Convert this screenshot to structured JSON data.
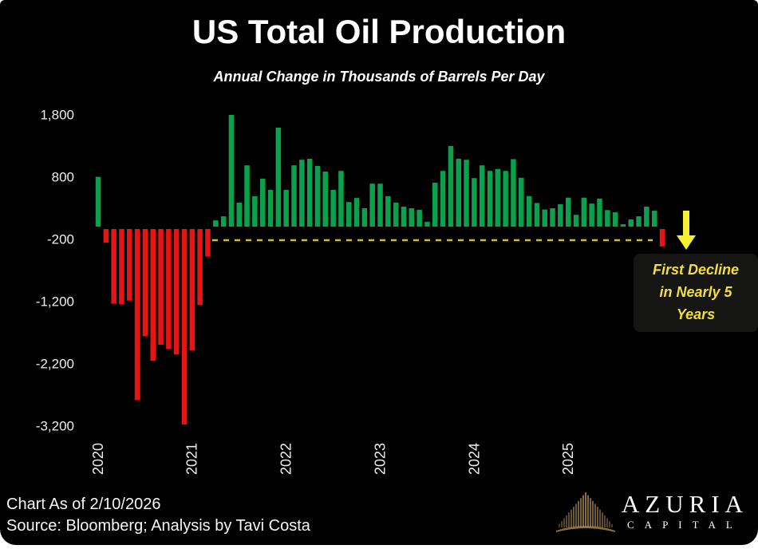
{
  "header": {
    "title": "US Total Oil Production",
    "subtitle": "Annual Change in Thousands of Barrels Per Day"
  },
  "chart_data": {
    "type": "bar",
    "title": "US Total Oil Production",
    "subtitle": "Annual Change in Thousands of Barrels Per Day",
    "ylabel": "Annual change (thousands of barrels per day)",
    "xlabel": "",
    "grid": false,
    "ylim": [
      -3400,
      2000
    ],
    "categories": [
      "2020-01",
      "2020-02",
      "2020-03",
      "2020-04",
      "2020-05",
      "2020-06",
      "2020-07",
      "2020-08",
      "2020-09",
      "2020-10",
      "2020-11",
      "2020-12",
      "2021-01",
      "2021-02",
      "2021-03",
      "2021-04",
      "2021-05",
      "2021-06",
      "2021-07",
      "2021-08",
      "2021-09",
      "2021-10",
      "2021-11",
      "2021-12",
      "2022-01",
      "2022-02",
      "2022-03",
      "2022-04",
      "2022-05",
      "2022-06",
      "2022-07",
      "2022-08",
      "2022-09",
      "2022-10",
      "2022-11",
      "2022-12",
      "2023-01",
      "2023-02",
      "2023-03",
      "2023-04",
      "2023-05",
      "2023-06",
      "2023-07",
      "2023-08",
      "2023-09",
      "2023-10",
      "2023-11",
      "2023-12",
      "2024-01",
      "2024-02",
      "2024-03",
      "2024-04",
      "2024-05",
      "2024-06",
      "2024-07",
      "2024-08",
      "2024-09",
      "2024-10",
      "2024-11",
      "2024-12",
      "2025-01",
      "2025-02",
      "2025-03",
      "2025-04",
      "2025-05",
      "2025-06",
      "2025-07",
      "2025-08",
      "2025-09",
      "2025-10",
      "2025-11",
      "2025-12",
      "2026-01"
    ],
    "values": [
      800,
      -220,
      -1200,
      -1210,
      -1150,
      -2745,
      -1720,
      -2115,
      -1860,
      -1925,
      -2015,
      -3140,
      -1950,
      -1220,
      -440,
      100,
      165,
      1795,
      385,
      985,
      490,
      770,
      590,
      1590,
      590,
      985,
      1075,
      1090,
      975,
      885,
      590,
      895,
      395,
      460,
      295,
      690,
      690,
      490,
      385,
      320,
      295,
      270,
      75,
      705,
      895,
      1295,
      1090,
      1075,
      780,
      985,
      895,
      925,
      895,
      1085,
      785,
      490,
      380,
      275,
      295,
      360,
      465,
      190,
      465,
      370,
      450,
      265,
      230,
      30,
      115,
      165,
      320,
      255,
      -280
    ],
    "colors": {
      "positive": "#0aa14c",
      "negative": "#e81414"
    },
    "y_ticks": [
      {
        "label": "1,800",
        "value": 1800
      },
      {
        "label": "800",
        "value": 800
      },
      {
        "label": "-200",
        "value": -200
      },
      {
        "label": "-1,200",
        "value": -1200
      },
      {
        "label": "-2,200",
        "value": -2200
      },
      {
        "label": "-3,200",
        "value": -3200
      }
    ],
    "x_year_labels": [
      "2020",
      "2021",
      "2022",
      "2023",
      "2024",
      "2025"
    ],
    "reference_line": {
      "value": -218,
      "style": "dashed",
      "color": "#cdbd33"
    },
    "legend": "none"
  },
  "annotation": {
    "lines": [
      "First Decline",
      "in Nearly 5",
      "Years"
    ],
    "color": "#f2df38",
    "arrow_color": "#f6ee33",
    "arrow_direction": "down"
  },
  "footer": {
    "as_of": "Chart As of 2/10/2026",
    "source": "Source: Bloomberg; Analysis by Tavi Costa"
  },
  "logo": {
    "name": "AZURIA",
    "subtitle": "CAPITAL",
    "mark_color": "#a8884e"
  }
}
